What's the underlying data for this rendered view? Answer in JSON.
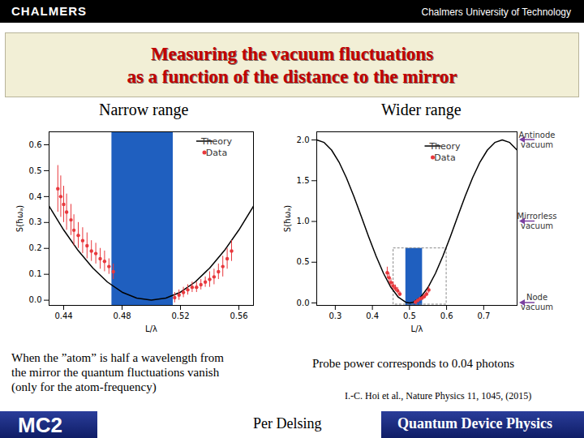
{
  "slide": {
    "header_left": "CHALMERS",
    "header_right": "Chalmers University of Technology",
    "title": [
      "Measuring the vacuum fluctuations",
      "as a function of the distance to the mirror"
    ],
    "caption_left": [
      "When the ”atom” is half a wavelength from",
      "the mirror the quantum fluctuations vanish",
      "(only for the atom-frequency)"
    ],
    "caption_right": "Probe power corresponds to 0.04 photons",
    "reference": "I.-C. Hoi et al., Nature Physics 11, 1045, (2015)",
    "footer_left": "MC2",
    "footer_center": "Per Delsing",
    "footer_right": "Quantum Device Physics"
  },
  "chart_data": [
    {
      "type": "scatter",
      "title": "Narrow range",
      "x_label": "L/λ",
      "y_label": "S(ħωₐ)",
      "xlim": [
        0.43,
        0.57
      ],
      "xticks": [
        0.44,
        0.48,
        0.52,
        0.56
      ],
      "ylim": [
        -0.02,
        0.65
      ],
      "yticks": [
        {
          "value": 0,
          "label": "0.0"
        },
        0.1,
        0.2,
        0.3,
        0.4,
        0.5,
        0.6
      ],
      "legend": "top-right",
      "shaded_region": {
        "x": [
          0.473,
          0.515
        ],
        "y": [
          -0.02,
          0.65
        ],
        "color": "#1f5fbf"
      },
      "series": [
        {
          "name": "Theory",
          "type": "line",
          "color": "#000000",
          "x": [
            0.43,
            0.44,
            0.45,
            0.46,
            0.47,
            0.48,
            0.49,
            0.5,
            0.51,
            0.52,
            0.53,
            0.54,
            0.55,
            0.56,
            0.57
          ],
          "values": [
            0.363,
            0.271,
            0.191,
            0.124,
            0.07,
            0.031,
            0.008,
            0,
            0.008,
            0.031,
            0.07,
            0.124,
            0.191,
            0.271,
            0.363
          ]
        },
        {
          "name": "Data",
          "type": "scatter",
          "marker": "circle",
          "color": "#e8383d",
          "x": [
            0.436,
            0.438,
            0.44,
            0.442,
            0.445,
            0.447,
            0.45,
            0.453,
            0.456,
            0.459,
            0.462,
            0.465,
            0.468,
            0.471,
            0.474,
            0.516,
            0.519,
            0.522,
            0.525,
            0.528,
            0.531,
            0.534,
            0.537,
            0.54,
            0.543,
            0.546,
            0.549,
            0.552,
            0.555
          ],
          "values": [
            0.43,
            0.4,
            0.37,
            0.34,
            0.31,
            0.27,
            0.25,
            0.23,
            0.21,
            0.19,
            0.18,
            0.16,
            0.15,
            0.13,
            0.11,
            0.01,
            0.02,
            0.03,
            0.04,
            0.05,
            0.05,
            0.06,
            0.07,
            0.08,
            0.09,
            0.11,
            0.13,
            0.16,
            0.19
          ],
          "errors": [
            0.09,
            0.08,
            0.07,
            0.07,
            0.06,
            0.06,
            0.05,
            0.05,
            0.05,
            0.04,
            0.04,
            0.04,
            0.04,
            0.03,
            0.03,
            0.02,
            0.02,
            0.02,
            0.02,
            0.02,
            0.02,
            0.02,
            0.02,
            0.03,
            0.03,
            0.03,
            0.04,
            0.04,
            0.04
          ]
        }
      ]
    },
    {
      "type": "scatter",
      "title": "Wider range",
      "x_label": "L/λ",
      "y_label": "S(ħωₐ)",
      "xlim": [
        0.25,
        0.79
      ],
      "xticks": [
        0.3,
        0.4,
        0.5,
        0.6,
        0.7
      ],
      "ylim": [
        -0.03,
        2.1
      ],
      "yticks": [
        {
          "value": 0,
          "label": "0.0"
        },
        0.5,
        {
          "value": 1,
          "label": "1.0"
        },
        1.5,
        {
          "value": 2,
          "label": "2.0"
        }
      ],
      "legend": "top",
      "shaded_region": {
        "x": [
          0.49,
          0.535
        ],
        "y": [
          -0.03,
          0.67
        ],
        "color": "#1f5fbf"
      },
      "zoom_box": {
        "x": [
          0.457,
          0.6
        ],
        "y": [
          -0.02,
          0.67
        ],
        "color": "#888888",
        "line_style": "dashed"
      },
      "annotations": [
        {
          "text": "Antinode vacuum",
          "y": 2.0,
          "color": "#7b3fa0"
        },
        {
          "text": "Mirrorless vacuum",
          "y": 1.0,
          "color": "#7b3fa0"
        },
        {
          "text": "Node vacuum",
          "y": 0.0,
          "color": "#7b3fa0"
        }
      ],
      "series": [
        {
          "name": "Theory",
          "type": "line",
          "color": "#000000",
          "x": [
            0.25,
            0.27,
            0.29,
            0.31,
            0.33,
            0.35,
            0.37,
            0.39,
            0.41,
            0.43,
            0.45,
            0.47,
            0.49,
            0.5,
            0.51,
            0.53,
            0.55,
            0.57,
            0.59,
            0.61,
            0.63,
            0.65,
            0.67,
            0.69,
            0.71,
            0.73,
            0.75,
            0.77,
            0.79
          ],
          "values": [
            2.0,
            1.969,
            1.876,
            1.729,
            1.535,
            1.309,
            1.063,
            0.812,
            0.574,
            0.363,
            0.191,
            0.07,
            0.008,
            0,
            0.008,
            0.07,
            0.191,
            0.363,
            0.574,
            0.812,
            1.063,
            1.309,
            1.535,
            1.729,
            1.876,
            1.969,
            2.0,
            1.969,
            1.876
          ]
        },
        {
          "name": "Data",
          "type": "scatter",
          "marker": "circle",
          "color": "#e8383d",
          "x": [
            0.44,
            0.445,
            0.45,
            0.456,
            0.462,
            0.468,
            0.474,
            0.516,
            0.522,
            0.528,
            0.534,
            0.54,
            0.546,
            0.552
          ],
          "values": [
            0.37,
            0.31,
            0.25,
            0.21,
            0.18,
            0.15,
            0.11,
            0.01,
            0.03,
            0.05,
            0.06,
            0.08,
            0.11,
            0.16
          ],
          "errors": [
            0.07,
            0.06,
            0.05,
            0.05,
            0.04,
            0.04,
            0.03,
            0.02,
            0.02,
            0.02,
            0.02,
            0.03,
            0.03,
            0.04
          ]
        }
      ]
    }
  ]
}
